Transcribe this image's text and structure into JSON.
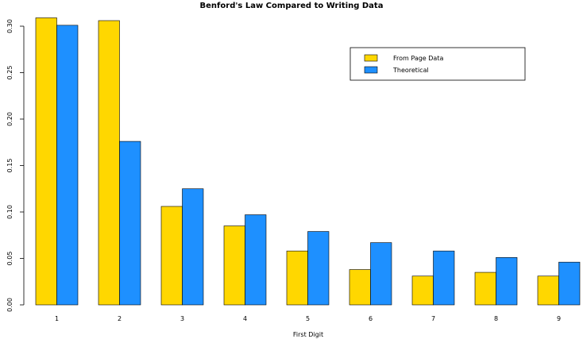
{
  "chart_data": {
    "type": "bar",
    "title": "Benford's Law Compared to Writing Data",
    "xlabel": "First Digit",
    "ylabel": "",
    "categories": [
      "1",
      "2",
      "3",
      "4",
      "5",
      "6",
      "7",
      "8",
      "9"
    ],
    "series": [
      {
        "name": "From Page Data",
        "color": "#FFD700",
        "values": [
          0.309,
          0.306,
          0.106,
          0.085,
          0.058,
          0.038,
          0.031,
          0.035,
          0.031
        ]
      },
      {
        "name": "Theoretical",
        "color": "#1E90FF",
        "values": [
          0.301,
          0.176,
          0.125,
          0.097,
          0.079,
          0.067,
          0.058,
          0.051,
          0.046
        ]
      }
    ],
    "ylim": [
      0,
      0.3
    ],
    "yticks": [
      0.0,
      0.05,
      0.1,
      0.15,
      0.2,
      0.25,
      0.3
    ],
    "ytick_labels": [
      "0.00",
      "0.05",
      "0.10",
      "0.15",
      "0.20",
      "0.25",
      "0.30"
    ],
    "legend_position": "top-right",
    "grid": false
  }
}
